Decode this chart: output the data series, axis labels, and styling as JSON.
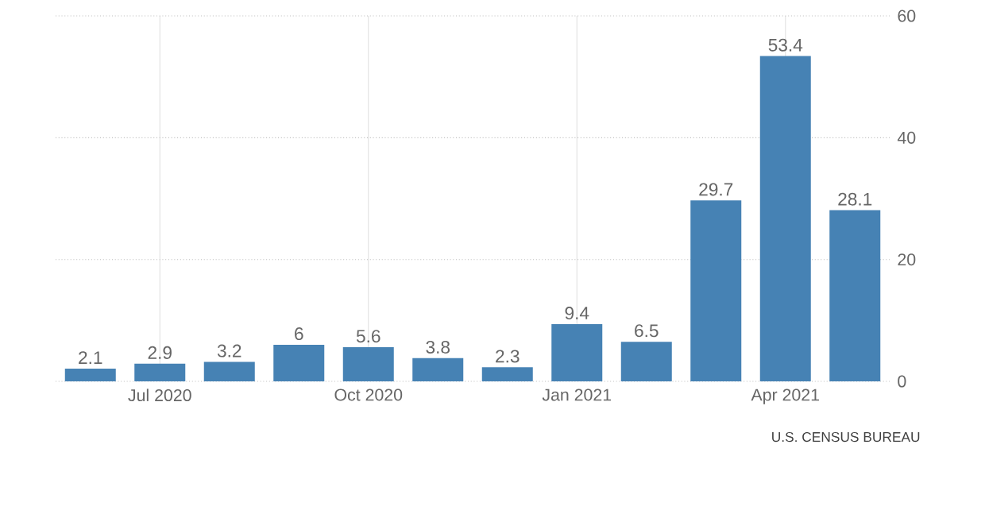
{
  "chart_data": {
    "type": "bar",
    "categories": [
      null,
      "Jul 2020",
      null,
      null,
      "Oct 2020",
      null,
      null,
      "Jan 2021",
      null,
      null,
      "Apr 2021",
      null
    ],
    "values": [
      2.1,
      2.9,
      3.2,
      6,
      5.6,
      3.8,
      2.3,
      9.4,
      6.5,
      29.7,
      53.4,
      28.1
    ],
    "color": "#4682b4",
    "ylim": [
      0,
      60
    ],
    "yticks": [
      0,
      20,
      40,
      60
    ],
    "grid": true,
    "data_labels": true,
    "annotations": [
      "U.S. CENSUS BUREAU"
    ]
  }
}
